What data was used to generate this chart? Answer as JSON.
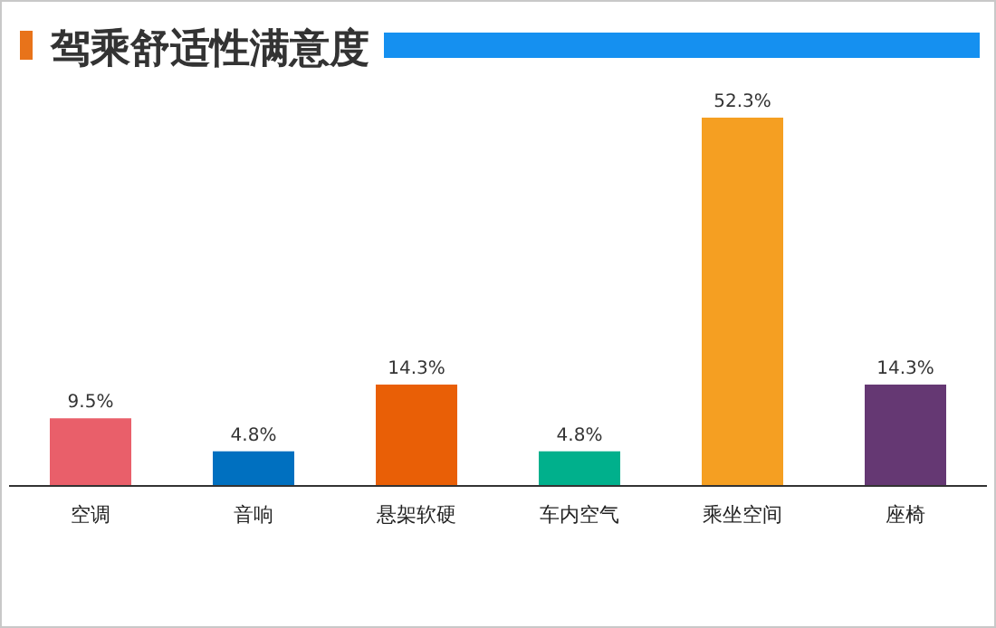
{
  "chart_data": {
    "type": "bar",
    "title": "驾乘舒适性满意度",
    "categories": [
      "空调",
      "音响",
      "悬架软硬",
      "车内空气",
      "乘坐空间",
      "座椅"
    ],
    "values": [
      9.5,
      4.8,
      14.3,
      4.8,
      52.3,
      14.3
    ],
    "colors": [
      "#e95f6a",
      "#0070c0",
      "#e95f06",
      "#00b08c",
      "#f59f22",
      "#653873"
    ],
    "value_labels": [
      "9.5%",
      "4.8%",
      "14.3%",
      "4.8%",
      "52.3%",
      "14.3%"
    ]
  }
}
